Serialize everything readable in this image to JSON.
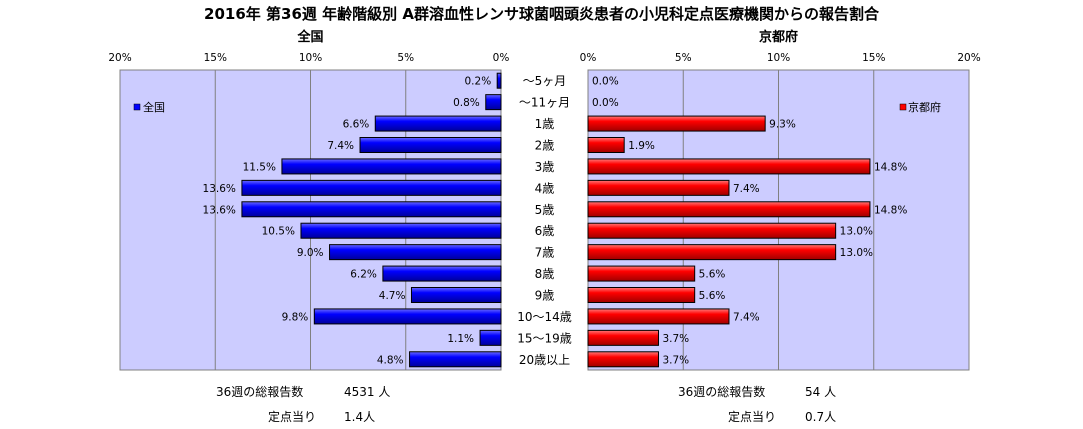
{
  "title": "2016年 第36週 年齢階級別 A群溶血性レンサ球菌咽頭炎患者の小児科定点医療機関からの報告割合",
  "chart_data": {
    "type": "bar",
    "orientation": "horizontal",
    "layout": "back-to-back",
    "categories": [
      "～5ヶ月",
      "～11ヶ月",
      "1歳",
      "2歳",
      "3歳",
      "4歳",
      "5歳",
      "6歳",
      "7歳",
      "8歳",
      "9歳",
      "10～14歳",
      "15～19歳",
      "20歳以上"
    ],
    "series": [
      {
        "name": "全国",
        "panel_title": "全国",
        "legend": "全国",
        "color": "#0000ff",
        "values": [
          0.2,
          0.8,
          6.6,
          7.4,
          11.5,
          13.6,
          13.6,
          10.5,
          9.0,
          6.2,
          4.7,
          9.8,
          1.1,
          4.8
        ],
        "labels": [
          "0.2%",
          "0.8%",
          "6.6%",
          "7.4%",
          "11.5%",
          "13.6%",
          "13.6%",
          "10.5%",
          "9.0%",
          "6.2%",
          "4.7%",
          "9.8%",
          "1.1%",
          "4.8%"
        ],
        "xlim": [
          0,
          20
        ],
        "ticks": [
          "20%",
          "15%",
          "10%",
          "5%",
          "0%"
        ],
        "direction": "leftward",
        "legend_position": "top-left"
      },
      {
        "name": "京都府",
        "panel_title": "京都府",
        "legend": "京都府",
        "color": "#ff0000",
        "values": [
          0.0,
          0.0,
          9.3,
          1.9,
          14.8,
          7.4,
          14.8,
          13.0,
          13.0,
          5.6,
          5.6,
          7.4,
          3.7,
          3.7
        ],
        "labels": [
          "0.0%",
          "0.0%",
          "9.3%",
          "1.9%",
          "14.8%",
          "7.4%",
          "14.8%",
          "13.0%",
          "13.0%",
          "5.6%",
          "5.6%",
          "7.4%",
          "3.7%",
          "3.7%"
        ],
        "xlim": [
          0,
          20
        ],
        "ticks": [
          "0%",
          "5%",
          "10%",
          "15%",
          "20%"
        ],
        "direction": "rightward",
        "legend_position": "top-right"
      }
    ],
    "plot_background": "#ccccff",
    "grid": true
  },
  "footer": {
    "national": {
      "total_label": "36週の総報告数",
      "total_value": "4531 人",
      "per_label": "定点当り",
      "per_value": "1.4人"
    },
    "kyoto": {
      "total_label": "36週の総報告数",
      "total_value": "54 人",
      "per_label": "定点当り",
      "per_value": "0.7人"
    }
  }
}
